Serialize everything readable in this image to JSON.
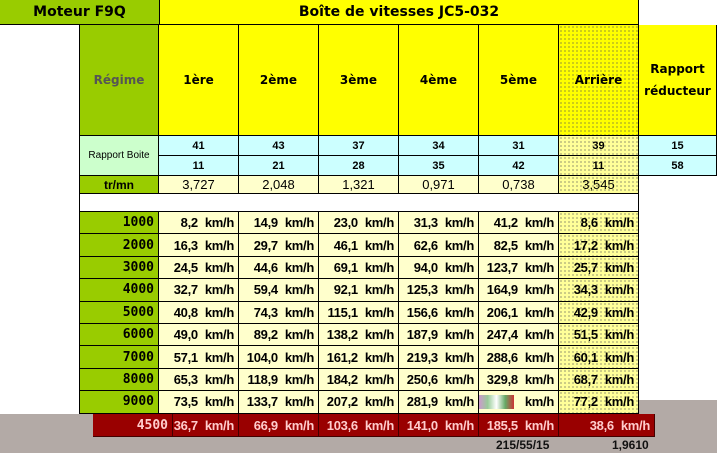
{
  "header": {
    "engine": "Moteur F9Q",
    "gearbox": "Boîte de vitesses JC5-032"
  },
  "columns": {
    "regime": "Régime",
    "gears": [
      "1ère",
      "2ème",
      "3ème",
      "4ème",
      "5ème",
      "Arrière"
    ],
    "reducer": "Rapport réducteur"
  },
  "ratios": {
    "label": "Rapport Boite",
    "top": [
      "41",
      "43",
      "37",
      "34",
      "31",
      "39"
    ],
    "bottom": [
      "11",
      "21",
      "28",
      "35",
      "42",
      "11"
    ],
    "reducer_top": "15",
    "reducer_bottom": "58"
  },
  "trmn": {
    "label": "tr/mn",
    "values": [
      "3,727",
      "2,048",
      "1,321",
      "0,971",
      "0,738",
      "3,545"
    ]
  },
  "unit": "km/h",
  "rows": [
    {
      "rpm": "1000",
      "v": [
        "8,2",
        "14,9",
        "23,0",
        "31,3",
        "41,2",
        "8,6"
      ]
    },
    {
      "rpm": "2000",
      "v": [
        "16,3",
        "29,7",
        "46,1",
        "62,6",
        "82,5",
        "17,2"
      ]
    },
    {
      "rpm": "3000",
      "v": [
        "24,5",
        "44,6",
        "69,1",
        "94,0",
        "123,7",
        "25,7"
      ]
    },
    {
      "rpm": "4000",
      "v": [
        "32,7",
        "59,4",
        "92,1",
        "125,3",
        "164,9",
        "34,3"
      ]
    },
    {
      "rpm": "5000",
      "v": [
        "40,8",
        "74,3",
        "115,1",
        "156,6",
        "206,1",
        "42,9"
      ]
    },
    {
      "rpm": "6000",
      "v": [
        "49,0",
        "89,2",
        "138,2",
        "187,9",
        "247,4",
        "51,5"
      ]
    },
    {
      "rpm": "7000",
      "v": [
        "57,1",
        "104,0",
        "161,2",
        "219,3",
        "288,6",
        "60,1"
      ]
    },
    {
      "rpm": "8000",
      "v": [
        "65,3",
        "118,9",
        "184,2",
        "250,6",
        "329,8",
        "68,7"
      ]
    },
    {
      "rpm": "9000",
      "v": [
        "73,5",
        "133,7",
        "207,2",
        "281,9",
        "",
        "77,2"
      ]
    }
  ],
  "highlight": {
    "rpm": "4500",
    "v": [
      "36,7",
      "66,9",
      "103,6",
      "141,0",
      "185,5",
      "38,6"
    ]
  },
  "footer": {
    "tire": "215/55/15",
    "value": "1,9610"
  },
  "colors": {
    "green": "#99cc00",
    "yellow": "#ffff00",
    "blue": "#ccffff",
    "cream": "#ffffcc",
    "red": "#990000",
    "gray": "#b3aaa6"
  }
}
